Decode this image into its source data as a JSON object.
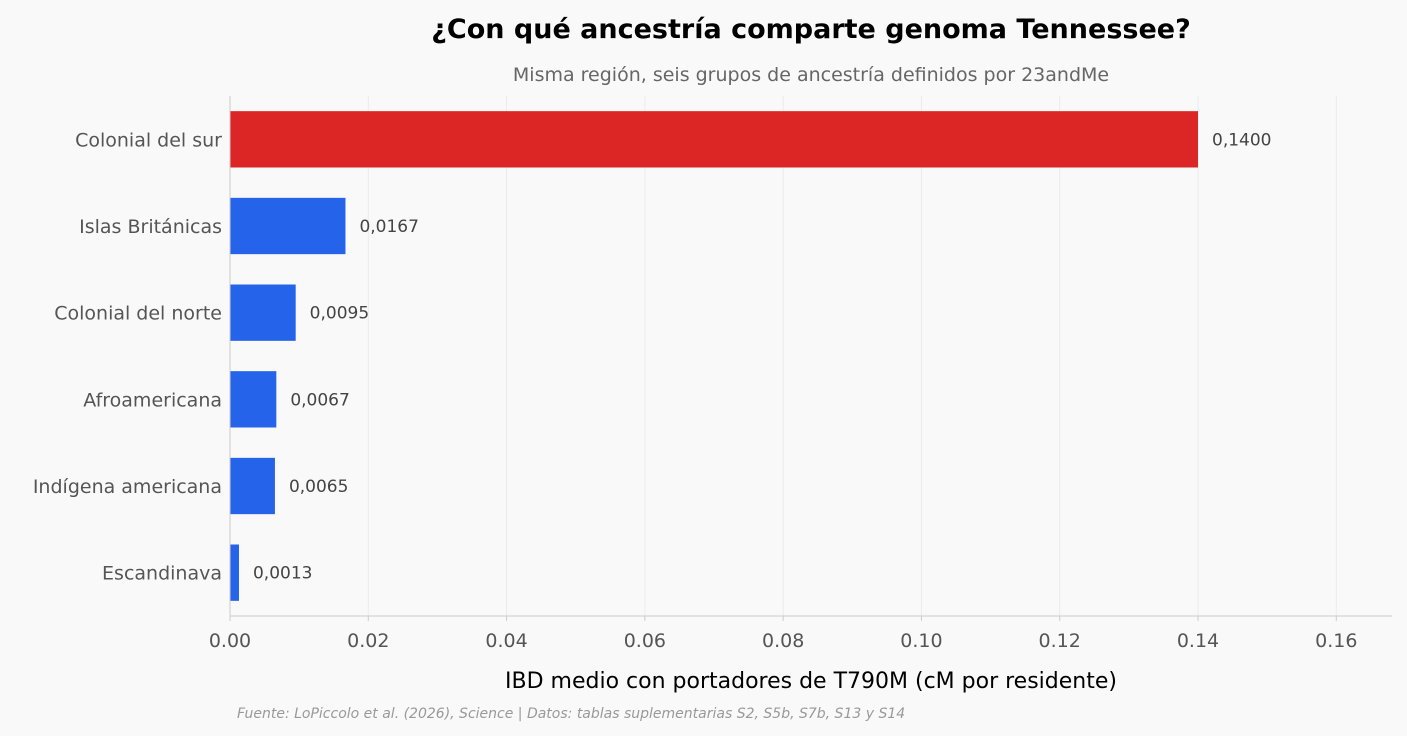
{
  "chart_data": {
    "type": "bar",
    "orientation": "horizontal",
    "title": "¿Con qué ancestría comparte genoma Tennessee?",
    "subtitle": "Misma región, seis grupos de ancestría definidos por 23andMe",
    "xlabel": "IBD medio con portadores de T790M (cM por residente)",
    "ylabel": "",
    "source": "Fuente: LoPiccolo et al. (2026), Science | Datos: tablas suplementarias S2, S5b, S7b, S13 y S14",
    "categories": [
      "Colonial del sur",
      "Islas Británicas",
      "Colonial del norte",
      "Afroamericana",
      "Indígena americana",
      "Escandinava"
    ],
    "values": [
      0.14,
      0.0167,
      0.0095,
      0.0067,
      0.0065,
      0.0013
    ],
    "value_labels": [
      "0,1400",
      "0,0167",
      "0,0095",
      "0,0067",
      "0,0065",
      "0,0013"
    ],
    "colors": [
      "#dc2626",
      "#2563eb",
      "#2563eb",
      "#2563eb",
      "#2563eb",
      "#2563eb"
    ],
    "xlim": [
      0,
      0.168
    ],
    "xticks": [
      0,
      0.02,
      0.04,
      0.06,
      0.08,
      0.1,
      0.12,
      0.14,
      0.16
    ],
    "xtick_labels": [
      "0.00",
      "0.02",
      "0.04",
      "0.06",
      "0.08",
      "0.10",
      "0.12",
      "0.14",
      "0.16"
    ],
    "grid": true
  }
}
